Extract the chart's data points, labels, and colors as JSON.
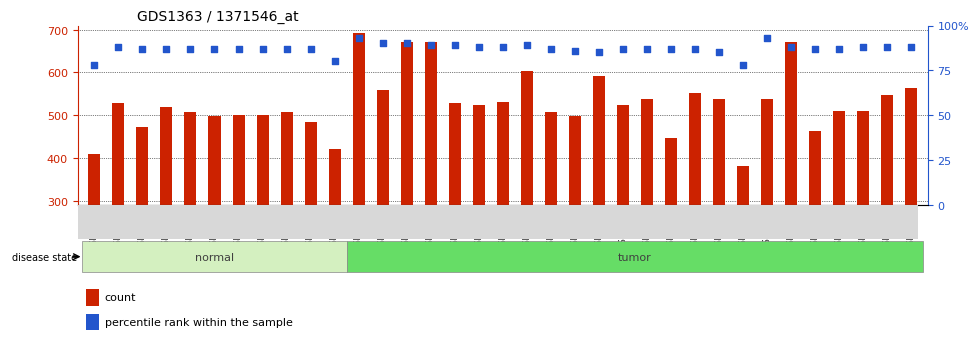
{
  "title": "GDS1363 / 1371546_at",
  "samples": [
    "GSM33158",
    "GSM33159",
    "GSM33160",
    "GSM33161",
    "GSM33162",
    "GSM33163",
    "GSM33164",
    "GSM33165",
    "GSM33166",
    "GSM33167",
    "GSM33168",
    "GSM33169",
    "GSM33170",
    "GSM33171",
    "GSM33172",
    "GSM33173",
    "GSM33174",
    "GSM33176",
    "GSM33177",
    "GSM33178",
    "GSM33179",
    "GSM33180",
    "GSM33181",
    "GSM33183",
    "GSM33184",
    "GSM33185",
    "GSM33186",
    "GSM33187",
    "GSM33188",
    "GSM33189",
    "GSM33190",
    "GSM33191",
    "GSM33192",
    "GSM33193",
    "GSM33194"
  ],
  "counts": [
    410,
    528,
    472,
    520,
    508,
    498,
    500,
    500,
    507,
    485,
    420,
    692,
    560,
    672,
    672,
    528,
    525,
    530,
    603,
    507,
    498,
    592,
    523,
    537,
    447,
    552,
    537,
    382,
    537,
    672,
    462,
    510,
    511,
    548,
    563
  ],
  "percentile": [
    78,
    88,
    87,
    87,
    87,
    87,
    87,
    87,
    87,
    87,
    80,
    93,
    90,
    90,
    89,
    89,
    88,
    88,
    89,
    87,
    86,
    85,
    87,
    87,
    87,
    87,
    85,
    78,
    93,
    88,
    87,
    87,
    88,
    88,
    88
  ],
  "group": [
    "normal",
    "normal",
    "normal",
    "normal",
    "normal",
    "normal",
    "normal",
    "normal",
    "normal",
    "normal",
    "normal",
    "tumor",
    "tumor",
    "tumor",
    "tumor",
    "tumor",
    "tumor",
    "tumor",
    "tumor",
    "tumor",
    "tumor",
    "tumor",
    "tumor",
    "tumor",
    "tumor",
    "tumor",
    "tumor",
    "tumor",
    "tumor",
    "tumor",
    "tumor",
    "tumor",
    "tumor",
    "tumor",
    "tumor"
  ],
  "ylim_left": [
    290,
    710
  ],
  "ylim_right": [
    0,
    100
  ],
  "yticks_left": [
    300,
    400,
    500,
    600,
    700
  ],
  "yticks_right": [
    0,
    25,
    50,
    75,
    100
  ],
  "bar_color": "#cc2200",
  "dot_color": "#2255cc",
  "normal_bg": "#d4f0c0",
  "tumor_bg": "#66dd66",
  "label_row_bg": "#d8d8d8",
  "grid_color": "#000000",
  "legend_bar_label": "count",
  "legend_dot_label": "percentile rank within the sample"
}
